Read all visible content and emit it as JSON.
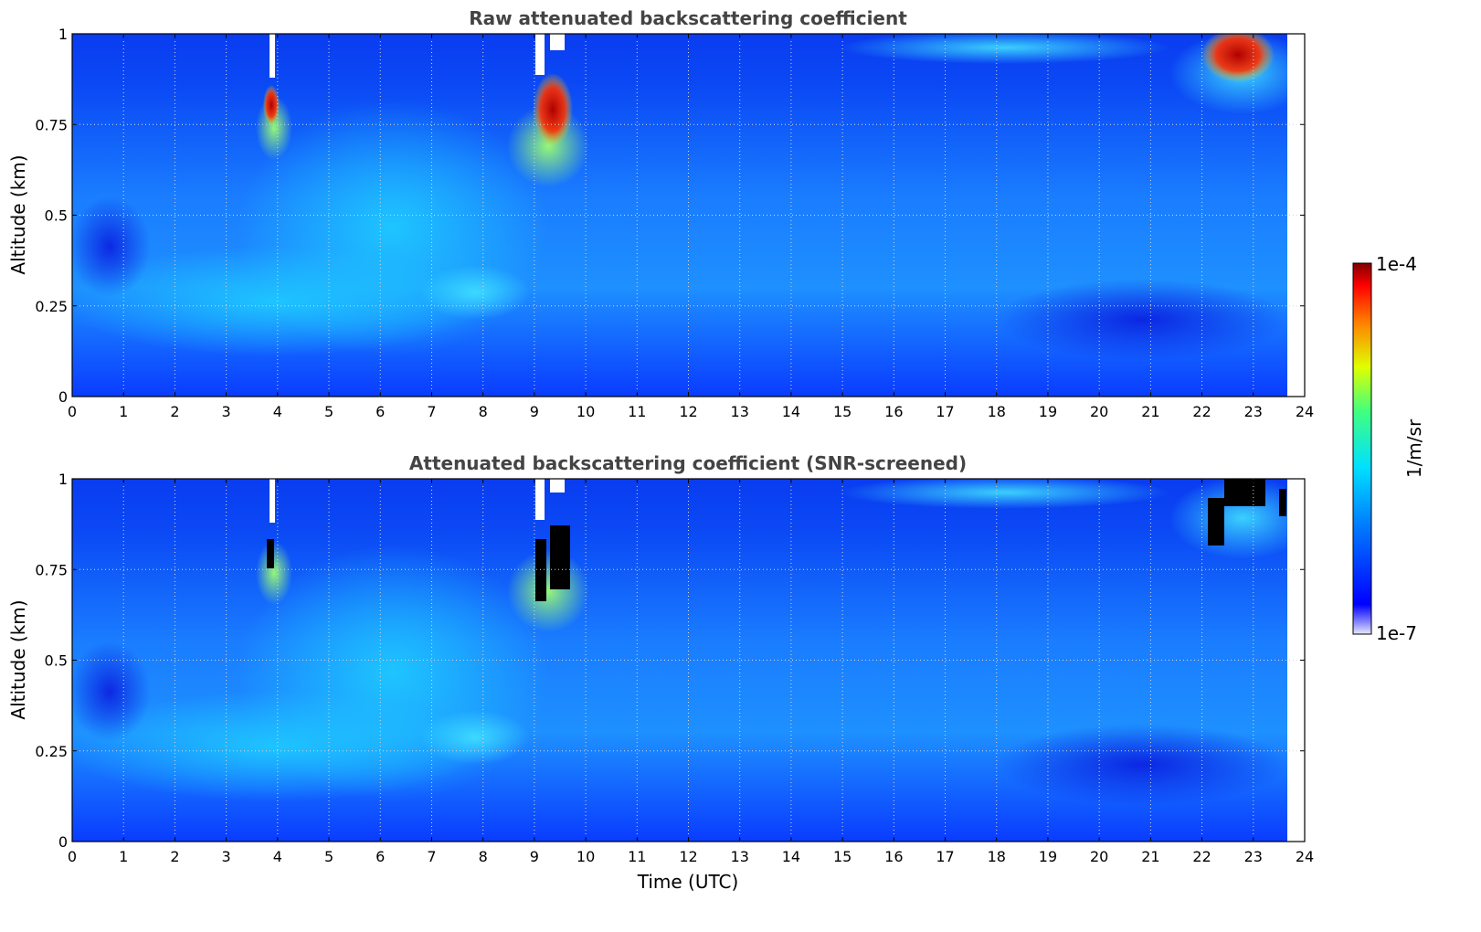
{
  "chart_data": [
    {
      "type": "heatmap",
      "title": "Raw attenuated backscattering coefficient",
      "xlabel": "",
      "ylabel": "Altitude (km)",
      "xlim": [
        0,
        24
      ],
      "ylim": [
        0,
        1
      ],
      "xticks": [
        "0",
        "1",
        "2",
        "3",
        "4",
        "5",
        "6",
        "7",
        "8",
        "9",
        "10",
        "11",
        "12",
        "13",
        "14",
        "15",
        "16",
        "17",
        "18",
        "19",
        "20",
        "21",
        "22",
        "23",
        "24"
      ],
      "yticks": [
        "0",
        "0.25",
        "0.5",
        "0.75",
        "1"
      ],
      "grid": true,
      "data_end_hour": 23.65,
      "features": [
        {
          "x": 3.85,
          "y": [
            0.72,
            0.85
          ],
          "level": "high"
        },
        {
          "x": 9.3,
          "y": [
            0.68,
            0.88
          ],
          "level": "high"
        },
        {
          "x": 22.7,
          "y": [
            0.8,
            1.0
          ],
          "level": "high"
        },
        {
          "x": 5.0,
          "y": [
            0.15,
            0.65
          ],
          "level": "elevated"
        },
        {
          "x": 17.5,
          "y": [
            0.9,
            1.0
          ],
          "level": "elevated"
        }
      ]
    },
    {
      "type": "heatmap",
      "title": "Attenuated backscattering coefficient (SNR-screened)",
      "xlabel": "Time (UTC)",
      "ylabel": "Altitude (km)",
      "xlim": [
        0,
        24
      ],
      "ylim": [
        0,
        1
      ],
      "xticks": [
        "0",
        "1",
        "2",
        "3",
        "4",
        "5",
        "6",
        "7",
        "8",
        "9",
        "10",
        "11",
        "12",
        "13",
        "14",
        "15",
        "16",
        "17",
        "18",
        "19",
        "20",
        "21",
        "22",
        "23",
        "24"
      ],
      "yticks": [
        "0",
        "0.25",
        "0.5",
        "0.75",
        "1"
      ],
      "grid": true,
      "data_end_hour": 23.65,
      "features": [
        {
          "x": 3.85,
          "y": [
            0.72,
            0.85
          ],
          "level": "screened"
        },
        {
          "x": 9.3,
          "y": [
            0.68,
            0.88
          ],
          "level": "screened"
        },
        {
          "x": 22.7,
          "y": [
            0.8,
            1.0
          ],
          "level": "screened"
        }
      ]
    }
  ],
  "colorbar": {
    "label": "1/m/sr",
    "min_label": "1e-7",
    "max_label": "1e-4",
    "scale": "log",
    "colormap": "jet"
  }
}
